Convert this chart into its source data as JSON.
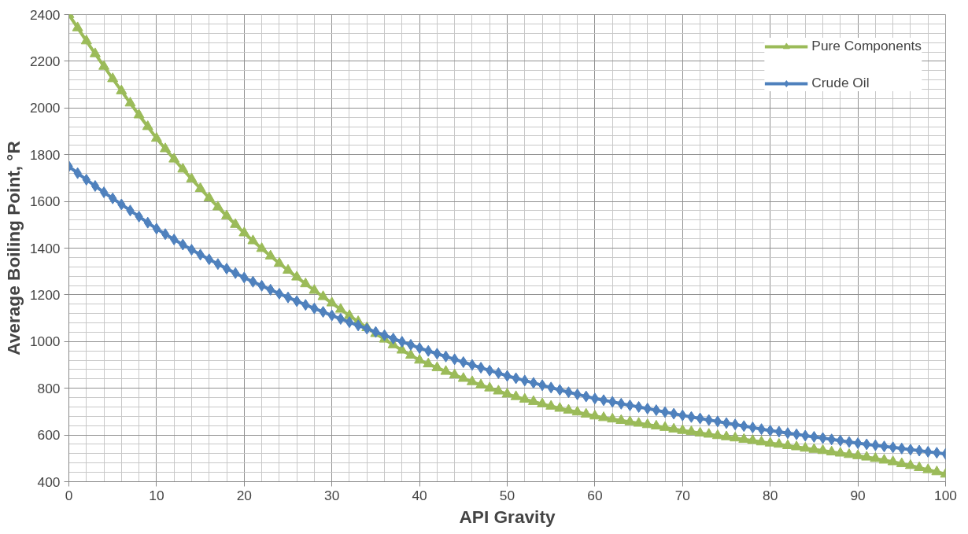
{
  "chart_data": {
    "type": "line",
    "xlabel": "API Gravity",
    "ylabel": "Average Boiling Point, °R",
    "x": [
      0,
      1,
      2,
      3,
      4,
      5,
      6,
      7,
      8,
      9,
      10,
      11,
      12,
      13,
      14,
      15,
      16,
      17,
      18,
      19,
      20,
      21,
      22,
      23,
      24,
      25,
      26,
      27,
      28,
      29,
      30,
      31,
      32,
      33,
      34,
      35,
      36,
      37,
      38,
      39,
      40,
      41,
      42,
      43,
      44,
      45,
      46,
      47,
      48,
      49,
      50,
      51,
      52,
      53,
      54,
      55,
      56,
      57,
      58,
      59,
      60,
      61,
      62,
      63,
      64,
      65,
      66,
      67,
      68,
      69,
      70,
      71,
      72,
      73,
      74,
      75,
      76,
      77,
      78,
      79,
      80,
      81,
      82,
      83,
      84,
      85,
      86,
      87,
      88,
      89,
      90,
      91,
      92,
      93,
      94,
      95,
      96,
      97,
      98,
      99,
      100
    ],
    "series": [
      {
        "name": "Pure Components",
        "color": "#9bbb59",
        "marker": "triangle",
        "values": [
          2400,
          2343,
          2287,
          2232,
          2178,
          2125,
          2073,
          2021,
          1970,
          1920,
          1870,
          1825,
          1781,
          1738,
          1696,
          1655,
          1615,
          1576,
          1538,
          1501,
          1465,
          1431,
          1398,
          1366,
          1335,
          1305,
          1276,
          1247,
          1219,
          1192,
          1165,
          1138,
          1111,
          1085,
          1059,
          1034,
          1010,
          986,
          963,
          941,
          920,
          904,
          888,
          872,
          857,
          842,
          828,
          814,
          801,
          788,
          775,
          764,
          753,
          743,
          733,
          723,
          714,
          706,
          698,
          689,
          681,
          674,
          668,
          662,
          656,
          650,
          644,
          638,
          632,
          625,
          619,
          614,
          608,
          603,
          597,
          592,
          587,
          581,
          576,
          570,
          565,
          560,
          554,
          549,
          543,
          538,
          533,
          527,
          522,
          516,
          511,
          505,
          499,
          492,
          485,
          477,
          469,
          460,
          451,
          442,
          432
        ]
      },
      {
        "name": "Crude Oil",
        "color": "#4f81bd",
        "marker": "diamond",
        "values": [
          1750,
          1721,
          1693,
          1666,
          1639,
          1613,
          1587,
          1561,
          1535,
          1509,
          1483,
          1460,
          1437,
          1415,
          1393,
          1372,
          1352,
          1332,
          1312,
          1293,
          1274,
          1256,
          1239,
          1222,
          1205,
          1189,
          1173,
          1157,
          1142,
          1127,
          1112,
          1097,
          1083,
          1069,
          1055,
          1041,
          1027,
          1013,
          999,
          986,
          972,
          960,
          948,
          936,
          924,
          912,
          900,
          888,
          876,
          865,
          853,
          843,
          833,
          823,
          813,
          803,
          793,
          783,
          774,
          765,
          756,
          749,
          742,
          734,
          727,
          720,
          713,
          706,
          698,
          691,
          684,
          677,
          671,
          664,
          658,
          651,
          645,
          638,
          632,
          625,
          619,
          614,
          608,
          603,
          597,
          592,
          587,
          581,
          576,
          570,
          565,
          560,
          556,
          551,
          547,
          542,
          537,
          533,
          528,
          524,
          519
        ]
      }
    ],
    "xlim": [
      0,
      100
    ],
    "xticks": [
      0,
      10,
      20,
      30,
      40,
      50,
      60,
      70,
      80,
      90,
      100
    ],
    "ylim": [
      400,
      2400
    ],
    "yticks": [
      400,
      600,
      800,
      1000,
      1200,
      1400,
      1600,
      1800,
      2000,
      2200,
      2400
    ],
    "grid": true,
    "legend": "top right"
  }
}
